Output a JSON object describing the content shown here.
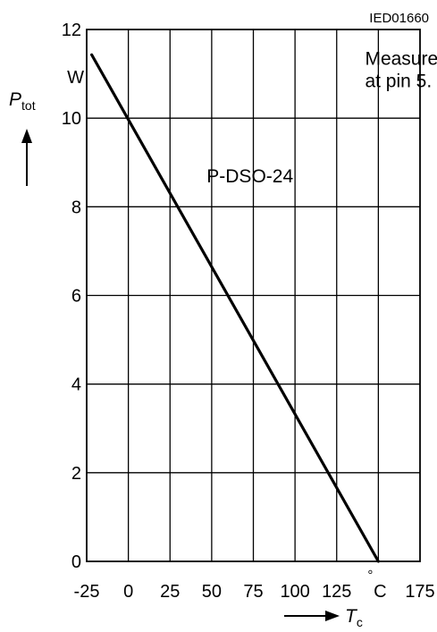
{
  "chart_data": {
    "type": "line",
    "figure_id": "IED01660",
    "ylabel": {
      "symbol": "P",
      "subscript": "tot"
    },
    "xlabel": {
      "symbol": "T",
      "subscript": "c"
    },
    "y_unit": "W",
    "x_unit": "°C",
    "xlim": [
      -25,
      175
    ],
    "ylim": [
      0,
      12
    ],
    "x_ticks": [
      -25,
      0,
      25,
      50,
      75,
      100,
      125,
      175
    ],
    "x_unit_tick_position": 150,
    "y_ticks": [
      0,
      2,
      4,
      6,
      8,
      10,
      12
    ],
    "grid": true,
    "annotations": [
      {
        "lines": [
          "Measured",
          "at pin 5."
        ],
        "x": 142,
        "y": 11.2
      },
      {
        "lines": [
          "P-DSO-24"
        ],
        "x": 47,
        "y": 8.55
      }
    ],
    "series": [
      {
        "name": "P-DSO-24",
        "x": [
          -22,
          150
        ],
        "y": [
          11.43,
          0
        ]
      }
    ]
  }
}
